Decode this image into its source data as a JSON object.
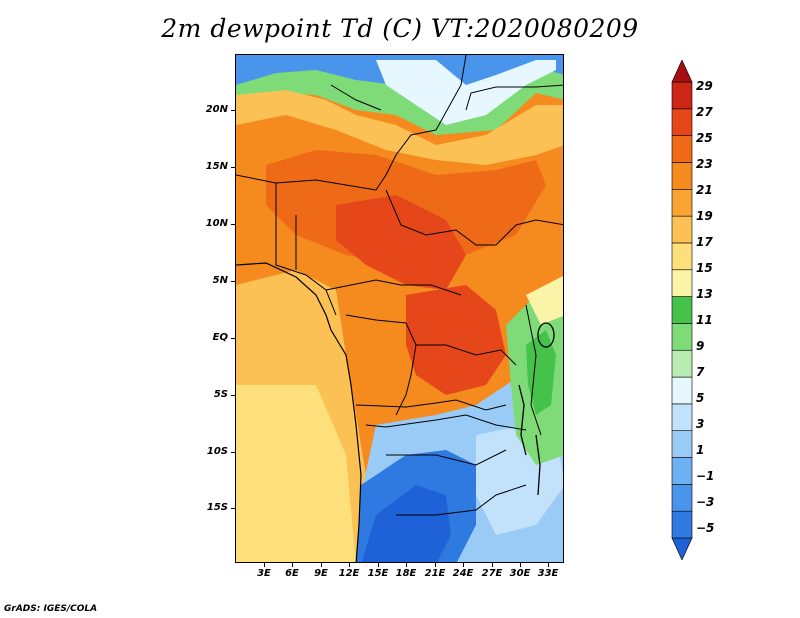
{
  "title": "2m dewpoint Td (C) VT:2020080209",
  "credit": "GrADS: IGES/COLA",
  "map": {
    "lat_labels": [
      "20N",
      "15N",
      "10N",
      "5N",
      "EQ",
      "5S",
      "10S",
      "15S"
    ],
    "lat_values": [
      20,
      15,
      10,
      5,
      0,
      -5,
      -10,
      -15
    ],
    "lon_labels": [
      "3E",
      "6E",
      "9E",
      "12E",
      "15E",
      "18E",
      "21E",
      "24E",
      "27E",
      "30E",
      "33E"
    ],
    "lon_values": [
      3,
      6,
      9,
      12,
      15,
      18,
      21,
      24,
      27,
      30,
      33
    ],
    "lon_range": [
      0,
      34.5
    ],
    "lat_range": [
      -19.8,
      24.8
    ]
  },
  "colorbar": {
    "labels": [
      "29",
      "27",
      "25",
      "23",
      "21",
      "19",
      "17",
      "15",
      "13",
      "11",
      "9",
      "7",
      "5",
      "3",
      "1",
      "−1",
      "−3",
      "−5"
    ],
    "colors": [
      "#1f61d6",
      "#2f7ae0",
      "#4a95ec",
      "#6fb0f2",
      "#9acbf7",
      "#c2e2fb",
      "#e6f7ff",
      "#b8ecb0",
      "#7edb78",
      "#45c24a",
      "#fbf3a7",
      "#fde07c",
      "#fbc155",
      "#f9a333",
      "#f58a1f",
      "#ef6a16",
      "#e6471a",
      "#cc2616",
      "#a60f12"
    ]
  }
}
